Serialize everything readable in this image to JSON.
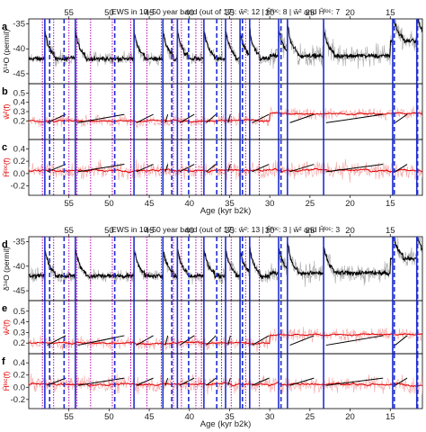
{
  "chart_data": [
    {
      "type": "line",
      "figure": "top",
      "title": "EWS in 10–50 year band (out of 17): ŵ²: 12 | Ĥˡᵒᶜ: 8 | ŵ² and Ĥˡᵒᶜ: 7",
      "xlabel": "Age (kyr b2k)",
      "xlim": [
        60,
        11
      ],
      "top_ticks": [
        "55",
        "50",
        "45",
        "40",
        "35",
        "30",
        "25",
        "20",
        "15"
      ],
      "bottom_ticks": [
        "55",
        "50",
        "45",
        "40",
        "35",
        "30",
        "25",
        "20",
        "15"
      ],
      "panels": [
        {
          "letter": "a",
          "ylabel": "δ¹⁸O (permil)",
          "ylim": [
            -47,
            -34
          ],
          "yticks": [
            "-35",
            "-40",
            "-45"
          ],
          "series": [
            {
              "color": "#000000"
            },
            {
              "color": "#a9a9a9"
            }
          ]
        },
        {
          "letter": "b",
          "ylabel": "ŵ²(f)",
          "ylim": [
            0,
            0.6
          ],
          "yticks": [
            "0.5",
            "0.4",
            "0.3",
            "0.2"
          ],
          "series": [
            {
              "color": "#e00000"
            },
            {
              "color": "#000000"
            }
          ]
        },
        {
          "letter": "c",
          "ylabel": "Ĥˡᵒᶜ(f)",
          "ylim": [
            -0.35,
            0.55
          ],
          "yticks": [
            "0.4",
            "0.2",
            "0.0",
            "-0.2"
          ],
          "series": [
            {
              "color": "#e00000"
            },
            {
              "color": "#000000"
            }
          ]
        }
      ],
      "transitions_solid": [
        58.0,
        54.2,
        46.9,
        43.3,
        41.5,
        38.2,
        35.5,
        33.7,
        32.5,
        28.9,
        27.8,
        23.3,
        14.7,
        11.7
      ],
      "transitions_dashed": [
        57.4,
        55.6,
        49.3,
        42.2,
        40.1,
        36.6,
        33.4,
        28.6,
        14.5,
        11.6
      ],
      "transitions_dotted": [
        58.3,
        56.9,
        55.0,
        54.0,
        52.3,
        49.6,
        47.3,
        45.3,
        43.5,
        42.0,
        41.0,
        39.2,
        38.5,
        36.0,
        34.8,
        33.0,
        31.3
      ]
    },
    {
      "type": "line",
      "figure": "bottom",
      "title": "EWS in 10–50 year band (out of 17): ŵ²: 13 | Ĥˡᵒᶜ: 3 | ŵ² and Ĥˡᵒᶜ: 3",
      "xlabel": "Age (kyr b2k)",
      "xlim": [
        60,
        11
      ],
      "top_ticks": [
        "55",
        "50",
        "45",
        "40",
        "35",
        "30",
        "25",
        "20",
        "15"
      ],
      "bottom_ticks": [
        "55",
        "50",
        "45",
        "40",
        "35",
        "30",
        "25",
        "20",
        "15"
      ],
      "panels": [
        {
          "letter": "d",
          "ylabel": "δ¹⁸O (permil)",
          "ylim": [
            -47,
            -34
          ],
          "yticks": [
            "-35",
            "-40",
            "-45"
          ],
          "series": [
            {
              "color": "#000000"
            },
            {
              "color": "#a9a9a9"
            }
          ]
        },
        {
          "letter": "e",
          "ylabel": "ŵ²(f)",
          "ylim": [
            0.1,
            0.6
          ],
          "yticks": [
            "0.5",
            "0.4",
            "0.3",
            "0.2"
          ],
          "series": [
            {
              "color": "#e00000"
            },
            {
              "color": "#000000"
            }
          ]
        },
        {
          "letter": "f",
          "ylabel": "Ĥˡᵒᶜ(f)",
          "ylim": [
            -0.35,
            0.55
          ],
          "yticks": [
            "0.4",
            "0.2",
            "0.0",
            "-0.2"
          ],
          "series": [
            {
              "color": "#e00000"
            },
            {
              "color": "#000000"
            }
          ]
        }
      ],
      "transitions_solid": [
        58.0,
        54.2,
        46.9,
        43.3,
        41.5,
        38.2,
        35.5,
        33.7,
        32.5,
        28.9,
        27.8,
        23.3,
        14.7,
        11.7
      ],
      "transitions_dashed": [
        57.4,
        55.6,
        49.3,
        42.2,
        40.1,
        36.6,
        33.4,
        28.6,
        14.5,
        11.6
      ],
      "transitions_dotted": [
        58.3,
        56.9,
        55.0,
        54.0,
        52.3,
        49.6,
        47.3,
        45.3,
        43.5,
        42.0,
        41.0,
        39.2,
        38.5,
        36.0,
        34.8,
        33.0,
        31.3
      ]
    }
  ],
  "colors": {
    "solid_line": "#1f2fd0",
    "dashed_line": "#1f2fd0",
    "dotted_line": "#b400b4",
    "ews_red": "#e00000",
    "ews_light": "#f4a6a6",
    "d18o_gray": "#a9a9a9",
    "ylabel_red": "#e00000"
  }
}
